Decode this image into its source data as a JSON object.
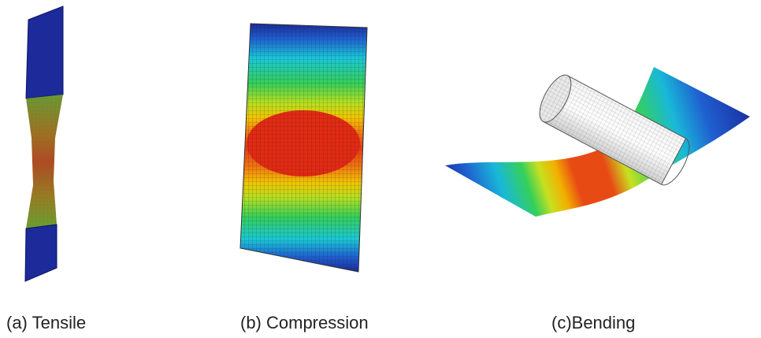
{
  "captions": {
    "tensile": "(a) Tensile",
    "compression": "(b) Compression",
    "bending": "(c)Bending"
  }
}
